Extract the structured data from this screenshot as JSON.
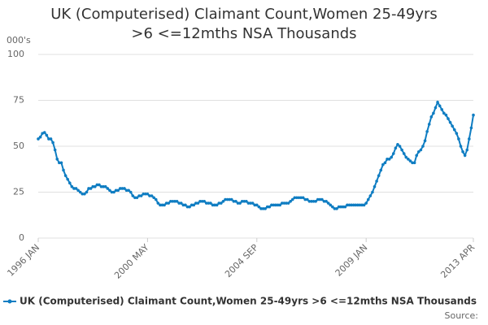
{
  "chart_data": {
    "type": "line",
    "title": "UK (Computerised) Claimant Count,Women 25-49yrs >6 <=12mths NSA Thousands",
    "y_label": "000's",
    "source": "Source:",
    "categories": [
      "1996 JAN",
      null,
      null,
      null,
      null,
      null,
      null,
      null,
      null,
      null,
      null,
      null,
      null,
      null,
      null,
      null,
      null,
      null,
      null,
      null,
      null,
      null,
      null,
      null,
      null,
      null,
      null,
      null,
      null,
      null,
      null,
      null,
      null,
      null,
      null,
      null,
      null,
      null,
      null,
      null,
      null,
      null,
      null,
      null,
      null,
      null,
      null,
      null,
      null,
      null,
      null,
      null,
      "2000 MAY",
      null,
      null,
      null,
      null,
      null,
      null,
      null,
      null,
      null,
      null,
      null,
      null,
      null,
      null,
      null,
      null,
      null,
      null,
      null,
      null,
      null,
      null,
      null,
      null,
      null,
      null,
      null,
      null,
      null,
      null,
      null,
      null,
      null,
      null,
      null,
      null,
      null,
      null,
      null,
      null,
      null,
      null,
      null,
      null,
      null,
      null,
      null,
      null,
      null,
      null,
      null,
      "2004 SEP",
      null,
      null,
      null,
      null,
      null,
      null,
      null,
      null,
      null,
      null,
      null,
      null,
      null,
      null,
      null,
      null,
      null,
      null,
      null,
      null,
      null,
      null,
      null,
      null,
      null,
      null,
      null,
      null,
      null,
      null,
      null,
      null,
      null,
      null,
      null,
      null,
      null,
      null,
      null,
      null,
      null,
      null,
      null,
      null,
      null,
      null,
      null,
      null,
      null,
      null,
      null,
      "2009 JAN",
      null,
      null,
      null,
      null,
      null,
      null,
      null,
      null,
      null,
      null,
      null,
      null,
      null,
      null,
      null,
      null,
      null,
      null,
      null,
      null,
      null,
      null,
      null,
      null,
      null,
      null,
      null,
      null,
      null,
      null,
      null,
      null,
      null,
      null,
      null,
      null,
      null,
      null,
      null,
      null,
      null,
      null,
      null,
      null,
      null,
      null,
      null,
      null,
      null,
      null,
      "2013 APR"
    ],
    "series": [
      {
        "name": "UK (Computerised) Claimant Count,Women 25-49yrs >6 <=12mths NSA Thousands",
        "color": "#0f7dc2",
        "values": [
          54,
          55,
          57,
          57.5,
          56,
          54,
          54,
          52,
          48,
          43,
          41,
          41,
          37,
          34,
          32,
          30,
          28,
          27,
          27,
          26,
          25,
          24,
          24,
          25,
          27,
          27,
          28,
          28,
          29,
          29,
          28,
          28,
          28,
          27,
          26,
          25,
          25,
          26,
          26,
          27,
          27,
          27,
          26,
          26,
          25,
          23,
          22,
          22,
          23,
          23,
          24,
          24,
          24,
          23,
          23,
          22,
          21,
          19,
          18,
          18,
          18,
          19,
          19,
          20,
          20,
          20,
          20,
          19,
          19,
          18,
          18,
          17,
          17,
          18,
          18,
          19,
          19,
          20,
          20,
          20,
          19,
          19,
          19,
          18,
          18,
          18,
          19,
          19,
          20,
          21,
          21,
          21,
          21,
          20,
          20,
          19,
          19,
          20,
          20,
          20,
          19,
          19,
          19,
          18,
          18,
          17,
          16,
          16,
          16,
          17,
          17,
          18,
          18,
          18,
          18,
          18,
          19,
          19,
          19,
          19,
          20,
          21,
          22,
          22,
          22,
          22,
          22,
          21,
          21,
          20,
          20,
          20,
          20,
          21,
          21,
          21,
          20,
          20,
          19,
          18,
          17,
          16,
          16,
          17,
          17,
          17,
          17,
          18,
          18,
          18,
          18,
          18,
          18,
          18,
          18,
          18,
          19,
          21,
          23,
          25,
          28,
          31,
          34,
          37,
          40,
          41,
          43,
          43,
          44,
          46,
          49,
          51,
          50,
          48,
          46,
          44,
          43,
          42,
          41,
          41,
          45,
          47,
          48,
          50,
          53,
          58,
          62,
          66,
          68,
          71,
          74,
          72,
          70,
          68,
          67,
          65,
          63,
          61,
          59,
          57,
          54,
          50,
          47,
          45,
          48,
          54,
          60,
          67
        ]
      }
    ],
    "ylim": [
      0,
      100
    ],
    "yticks": [
      0,
      25,
      50,
      75,
      100
    ],
    "grid": true
  }
}
